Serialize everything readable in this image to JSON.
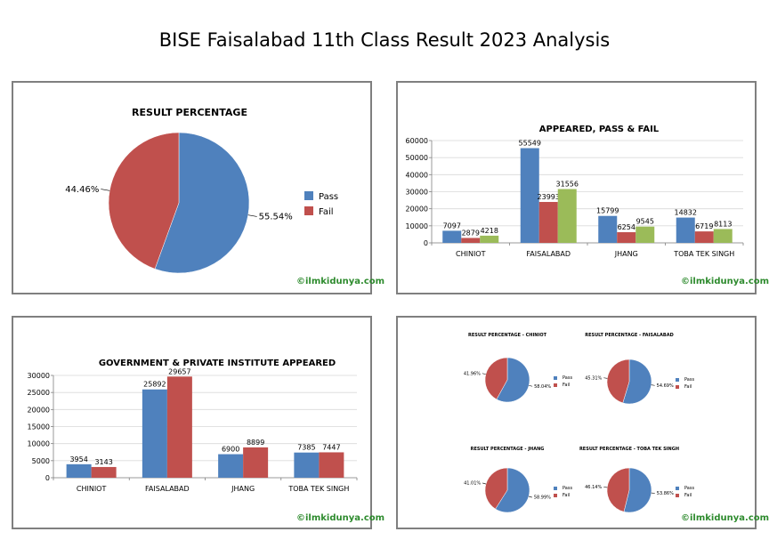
{
  "page": {
    "title": "BISE Faisalabad 11th Class Result 2023 Analysis",
    "credit": "©ilmkidunya.com"
  },
  "colors": {
    "pass": "#4f81bd",
    "fail": "#c0504d",
    "third": "#9bbb59"
  },
  "chart_data": [
    {
      "type": "pie",
      "title": "RESULT PERCENTAGE",
      "labels": [
        "Pass",
        "Fail"
      ],
      "values": [
        55.54,
        44.46
      ],
      "value_labels": [
        "55.54%",
        "44.46%"
      ],
      "legend": "right"
    },
    {
      "type": "bar",
      "title": "APPEARED, PASS & FAIL",
      "categories": [
        "CHINIOT",
        "FAISALABAD",
        "JHANG",
        "TOBA TEK SINGH"
      ],
      "series": [
        {
          "values": [
            7097,
            55549,
            15799,
            14832
          ]
        },
        {
          "values": [
            2879,
            23993,
            6254,
            6719
          ]
        },
        {
          "values": [
            4218,
            31556,
            9545,
            8113
          ]
        }
      ],
      "ylim": [
        0,
        60000
      ],
      "yticks": [
        0,
        10000,
        20000,
        30000,
        40000,
        50000,
        60000
      ],
      "grid": true
    },
    {
      "type": "bar",
      "title": "GOVERNMENT & PRIVATE INSTITUTE APPEARED",
      "categories": [
        "CHINIOT",
        "FAISALABAD",
        "JHANG",
        "TOBA TEK SINGH"
      ],
      "series": [
        {
          "values": [
            3954,
            25892,
            6900,
            7385
          ]
        },
        {
          "values": [
            3143,
            29657,
            8899,
            7447
          ]
        }
      ],
      "ylim": [
        0,
        30000
      ],
      "yticks": [
        0,
        5000,
        10000,
        15000,
        20000,
        25000,
        30000
      ],
      "grid": true
    },
    {
      "type": "pie",
      "title": "RESULT PERCENTAGE - CHINIOT",
      "labels": [
        "Pass",
        "Fail"
      ],
      "values": [
        58.04,
        41.96
      ],
      "value_labels": [
        "58.04%",
        "41.96%"
      ],
      "legend": "right"
    },
    {
      "type": "pie",
      "title": "RESULT PERCENTAGE - FAISALABAD",
      "labels": [
        "Pass",
        "Fail"
      ],
      "values": [
        54.69,
        45.31
      ],
      "value_labels": [
        "54.69%",
        "45.31%"
      ],
      "legend": "right"
    },
    {
      "type": "pie",
      "title": "RESULT PERCENTAGE - JHANG",
      "labels": [
        "Pass",
        "Fail"
      ],
      "values": [
        58.99,
        41.01
      ],
      "value_labels": [
        "58.99%",
        "41.01%"
      ],
      "legend": "right"
    },
    {
      "type": "pie",
      "title": "RESULT PERCENTAGE - TOBA TEK SINGH",
      "labels": [
        "Pass",
        "Fail"
      ],
      "values": [
        53.86,
        46.14
      ],
      "value_labels": [
        "53.86%",
        "46.14%"
      ],
      "legend": "right"
    }
  ]
}
